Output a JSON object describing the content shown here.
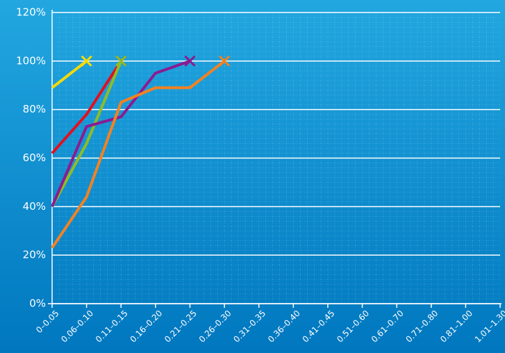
{
  "chart_data": {
    "type": "line",
    "categories": [
      "0–0.05",
      "0.06–0.10",
      "0.11–0.15",
      "0.16–0.20",
      "0.21–0.25",
      "0.26–0.30",
      "0.31–0.35",
      "0.36–0.40",
      "0.41–0.45",
      "0.51–0.60",
      "0.61–0.70",
      "0.71–0.80",
      "0.81–1.00",
      "1.01–1.30"
    ],
    "series": [
      {
        "color": "#f5d90a",
        "values": [
          89,
          100,
          null,
          null,
          null,
          null,
          null,
          null,
          null,
          null,
          null,
          null,
          null,
          null
        ]
      },
      {
        "color": "#e2101f",
        "values": [
          62,
          78,
          100,
          null,
          null,
          null,
          null,
          null,
          null,
          null,
          null,
          null,
          null,
          null
        ]
      },
      {
        "color": "#8fbc26",
        "values": [
          40,
          66,
          100,
          null,
          null,
          null,
          null,
          null,
          null,
          null,
          null,
          null,
          null,
          null
        ]
      },
      {
        "color": "#8a1c90",
        "values": [
          40,
          73,
          77,
          95,
          100,
          null,
          null,
          null,
          null,
          null,
          null,
          null,
          null,
          null
        ]
      },
      {
        "color": "#f28222",
        "values": [
          23,
          44,
          83,
          89,
          89,
          100,
          null,
          null,
          null,
          null,
          null,
          null,
          null,
          null
        ]
      }
    ],
    "ylim": [
      0,
      120
    ],
    "yticks": [
      {
        "value": 0,
        "label": "0%"
      },
      {
        "value": 20,
        "label": "20%"
      },
      {
        "value": 40,
        "label": "40%"
      },
      {
        "value": 60,
        "label": "60%"
      },
      {
        "value": 80,
        "label": "80%"
      },
      {
        "value": 100,
        "label": "100%"
      },
      {
        "value": 120,
        "label": "120%"
      }
    ],
    "grid": true,
    "end_marker": "x"
  }
}
